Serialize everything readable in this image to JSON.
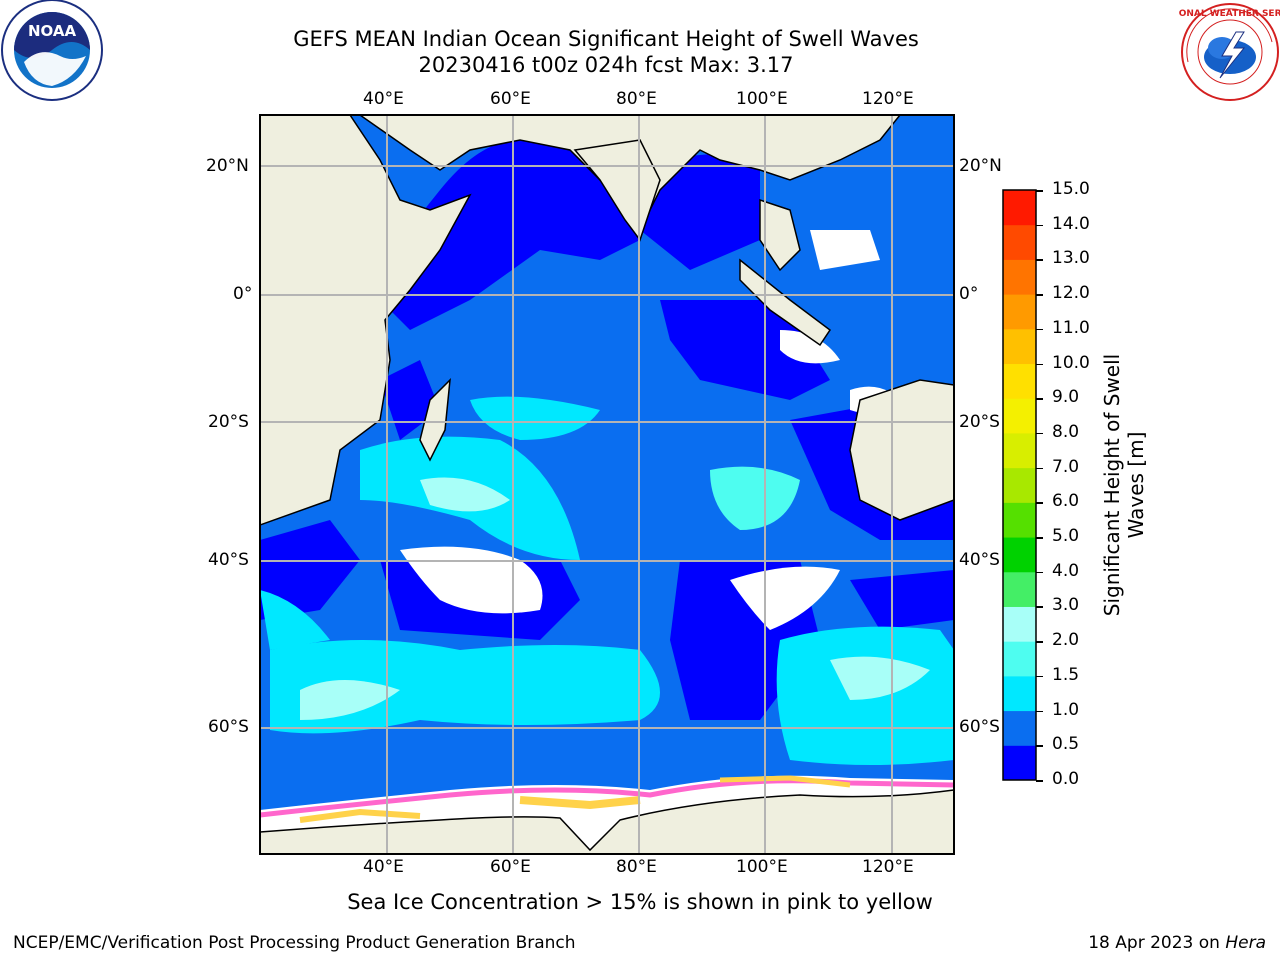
{
  "title": {
    "line1": "GEFS MEAN Indian Ocean Significant Height of Swell Waves",
    "line2": "20230416 t00z 024h fcst   Max: 3.17"
  },
  "map": {
    "lon_ticks": [
      "40°E",
      "60°E",
      "80°E",
      "100°E",
      "120°E"
    ],
    "lat_ticks": [
      "20°N",
      "0°",
      "20°S",
      "40°S",
      "60°S"
    ],
    "colors": {
      "land": "#efefdf",
      "grid": "#b4b4b4",
      "ice": "#ffffff"
    }
  },
  "colorbar": {
    "label_line1": "Significant Height of Swell",
    "label_line2": "Waves [m]",
    "ticks": [
      "0.0",
      "0.5",
      "1.0",
      "1.5",
      "2.0",
      "3.0",
      "4.0",
      "5.0",
      "6.0",
      "7.0",
      "8.0",
      "9.0",
      "10.0",
      "11.0",
      "12.0",
      "13.0",
      "14.0",
      "15.0"
    ],
    "colors": [
      "#0000ff",
      "#0a6ef0",
      "#00e8ff",
      "#4efdf0",
      "#a8fff8",
      "#44ee66",
      "#00d200",
      "#55e000",
      "#a8e800",
      "#d8ee00",
      "#f4f000",
      "#ffe000",
      "#ffc000",
      "#ff9a00",
      "#ff7400",
      "#ff4a00",
      "#ff1a00"
    ]
  },
  "note": "Sea Ice Concentration > 15% is shown in pink to yellow",
  "footer": {
    "left": "NCEP/EMC/Verification Post Processing Product Generation Branch",
    "right_prefix": "18 Apr 2023 on ",
    "right_italic": "Hera"
  },
  "logos": {
    "left": "NOAA",
    "right": "NATIONAL WEATHER SERVICE"
  }
}
